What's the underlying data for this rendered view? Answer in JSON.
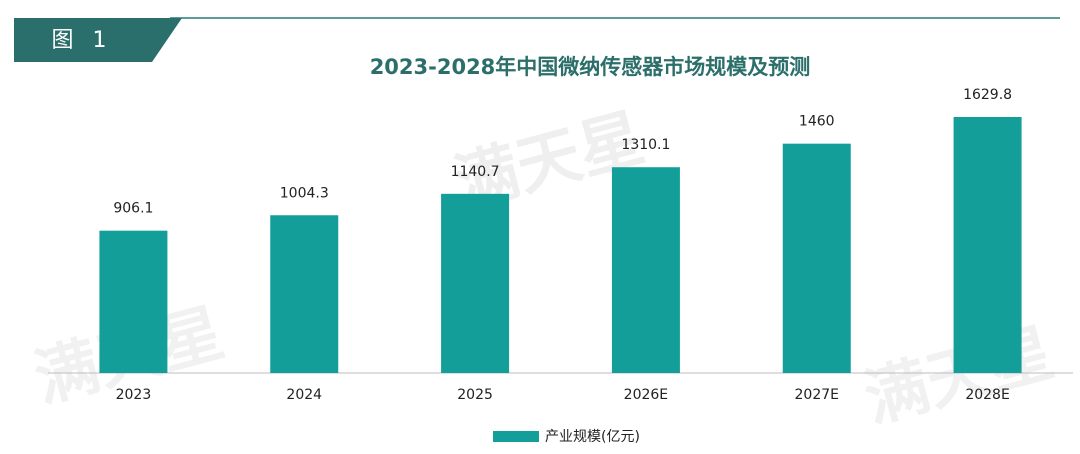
{
  "header": {
    "label": "图 1"
  },
  "watermark": "满天星",
  "chart_data": {
    "type": "bar",
    "title": "2023-2028年中国微纳传感器市场规模及预测",
    "categories": [
      "2023",
      "2024",
      "2025",
      "2026E",
      "2027E",
      "2028E"
    ],
    "series": [
      {
        "name": "产业规模(亿元)",
        "color": "#139e9a",
        "values": [
          906.1,
          1004.3,
          1140.7,
          1310.1,
          1460,
          1629.8
        ]
      }
    ]
  }
}
